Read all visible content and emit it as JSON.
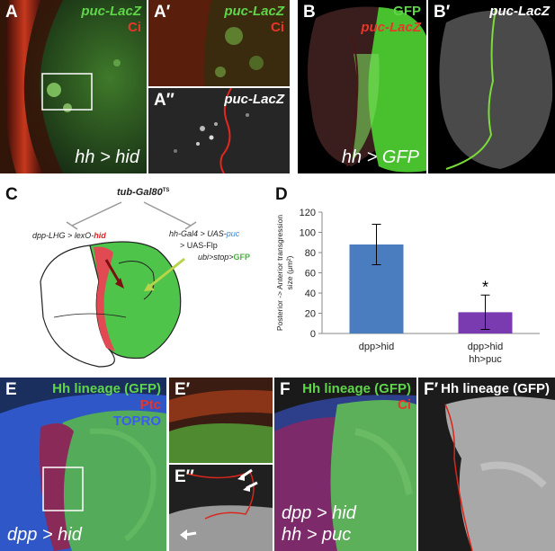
{
  "figure": {
    "panels": {
      "A": {
        "letter": "A",
        "label_green": "puc-LacZ",
        "label_red": "Ci",
        "genotype": "hh > hid"
      },
      "A1": {
        "letter": "A′",
        "label_green": "puc-LacZ",
        "label_red": "Ci"
      },
      "A2": {
        "letter": "A′′",
        "label_white": "puc-LacZ"
      },
      "B": {
        "letter": "B",
        "label_green": "GFP",
        "label_red": "puc-LacZ",
        "genotype": "hh > GFP"
      },
      "B1": {
        "letter": "B′",
        "label_white": "puc-LacZ"
      },
      "C": {
        "letter": "C",
        "tub": "tub-Gal80",
        "tub_sup": "TS",
        "left_prefix": "dpp-LHG > lexO-",
        "left_hid": "hid",
        "right_prefix": "hh-Gal4 > UAS-",
        "right_puc": "puc",
        "right_line2": "> UAS-Flp",
        "right_ubi": "ubi>stop>",
        "right_gfp": "GFP"
      },
      "D": {
        "letter": "D"
      },
      "E": {
        "letter": "E",
        "label_green": "Hh lineage (GFP)",
        "label_red": "Ptc",
        "label_blue": "TOPRO",
        "genotype": "dpp > hid"
      },
      "E1": {
        "letter": "E′"
      },
      "E2": {
        "letter": "E′′"
      },
      "F": {
        "letter": "F",
        "label_green": "Hh lineage (GFP)",
        "label_red": "Ci",
        "genotype_1": "dpp > hid",
        "genotype_2": "hh > puc"
      },
      "F1": {
        "letter": "F′",
        "label_white": "Hh lineage (GFP)"
      }
    },
    "colors": {
      "green": "#5fd54a",
      "red": "#e8362a",
      "blue": "#3a5cf0",
      "bar_dpp_hid": "#4a7dc0",
      "bar_hh_puc": "#7a3ab0"
    }
  },
  "chart_data": {
    "type": "bar",
    "categories": [
      "dpp>hid",
      "dpp>hid\nhh>puc"
    ],
    "category_lines": [
      [
        "dpp>hid"
      ],
      [
        "dpp>hid",
        "hh>puc"
      ]
    ],
    "values": [
      88,
      21
    ],
    "error": [
      20,
      17
    ],
    "significance": [
      "",
      "*"
    ],
    "ylabel_lines": [
      "Posterior -> Anterior transgression",
      "size (μm²)"
    ],
    "ylim": [
      0,
      120
    ],
    "yticks": [
      0,
      20,
      40,
      60,
      80,
      100,
      120
    ],
    "grid": false
  }
}
